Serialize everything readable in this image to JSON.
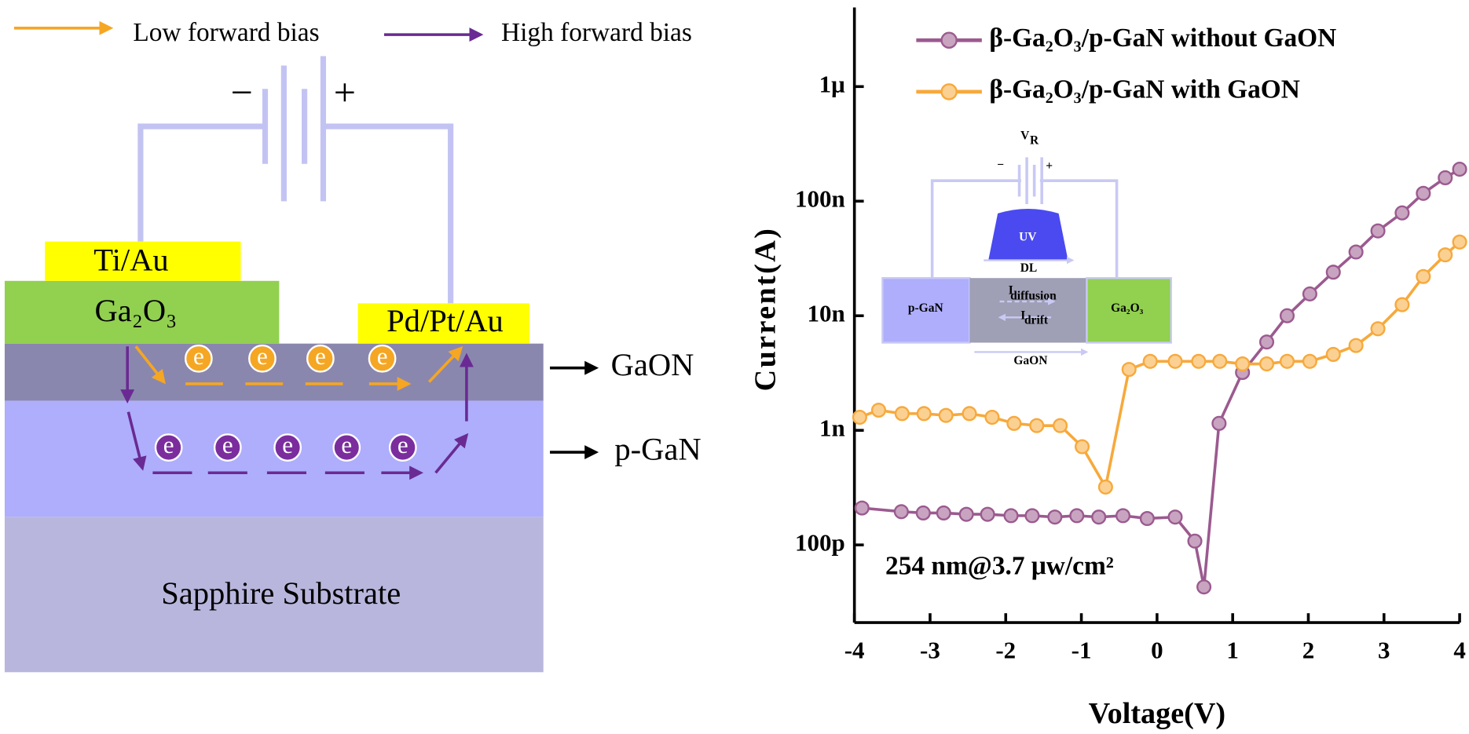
{
  "diagram": {
    "legend": [
      "Low forward bias",
      "High forward bias"
    ],
    "battery": [
      "−",
      "+"
    ],
    "layers": {
      "contact_left": "Ti/Au",
      "ga2o3": "Ga₂O₃",
      "contact_right": "Pd/Pt/Au",
      "sapphire": "Sapphire Substrate"
    },
    "layer_labels": [
      "GaON",
      "p-GaN"
    ],
    "electron": "e"
  },
  "chart_data": {
    "type": "line",
    "log_scale": true,
    "xlabel": "Voltage(V)",
    "ylabel": "Current(A)",
    "annotation": "254 nm@3.7 μw/cm²",
    "legend": "top-left",
    "xlim": [
      -4,
      4
    ],
    "xticks": [
      -4,
      -3,
      -2,
      -1,
      0,
      1,
      2,
      3,
      4
    ],
    "ylim": [
      2.1e-11,
      4.9e-06
    ],
    "yticks": [
      {
        "value": 1e-10,
        "label": "100p"
      },
      {
        "value": 1e-09,
        "label": "1n"
      },
      {
        "value": 1e-08,
        "label": "10n"
      },
      {
        "value": 1e-07,
        "label": "100n"
      },
      {
        "value": 1e-06,
        "label": "1μ"
      }
    ],
    "series": [
      {
        "name": "β-Ga₂O₃/p-GaN without GaON",
        "color": "#9b5a8f",
        "x": [
          -3.9,
          -3.38,
          -3.09,
          -2.82,
          -2.52,
          -2.24,
          -1.93,
          -1.65,
          -1.35,
          -1.06,
          -0.77,
          -0.45,
          -0.13,
          0.24,
          0.5,
          0.62,
          0.82,
          1.13,
          1.45,
          1.72,
          2.02,
          2.33,
          2.63,
          2.92,
          3.24,
          3.52,
          3.81,
          4.0
        ],
        "values": [
          2.1e-10,
          1.95e-10,
          1.9e-10,
          1.9e-10,
          1.85e-10,
          1.85e-10,
          1.8e-10,
          1.8e-10,
          1.75e-10,
          1.8e-10,
          1.75e-10,
          1.8e-10,
          1.7e-10,
          1.75e-10,
          1.08e-10,
          4.3e-11,
          1.15e-09,
          3.2e-09,
          5.9e-09,
          1e-08,
          1.55e-08,
          2.4e-08,
          3.6e-08,
          5.5e-08,
          7.9e-08,
          1.17e-07,
          1.6e-07,
          1.9e-07
        ]
      },
      {
        "name": "β-Ga₂O₃/p-GaN with GaON",
        "color": "#f7a93b",
        "x": [
          -3.93,
          -3.68,
          -3.37,
          -3.08,
          -2.79,
          -2.48,
          -2.18,
          -1.89,
          -1.59,
          -1.28,
          -0.99,
          -0.68,
          -0.37,
          -0.09,
          0.24,
          0.55,
          0.83,
          1.13,
          1.45,
          1.72,
          2.02,
          2.33,
          2.63,
          2.92,
          3.24,
          3.52,
          3.81,
          4.0
        ],
        "values": [
          1.3e-09,
          1.5e-09,
          1.4e-09,
          1.4e-09,
          1.35e-09,
          1.4e-09,
          1.3e-09,
          1.15e-09,
          1.1e-09,
          1.1e-09,
          7.2e-10,
          3.2e-10,
          3.4e-09,
          4e-09,
          4e-09,
          4e-09,
          4e-09,
          3.8e-09,
          3.8e-09,
          4e-09,
          4e-09,
          4.6e-09,
          5.5e-09,
          7.7e-09,
          1.25e-08,
          2.2e-08,
          3.4e-08,
          4.4e-08
        ]
      }
    ],
    "inset": {
      "source": "V",
      "source_sub": "R",
      "minus": "−",
      "plus": "+",
      "lamp": "UV",
      "depletion": "DL",
      "left": "p-GaN",
      "right": "Ga₂O₃",
      "diffusion": "I",
      "diffusion_sub": "diffusion",
      "drift": "I",
      "drift_sub": "drift",
      "middle": "GaON"
    }
  }
}
